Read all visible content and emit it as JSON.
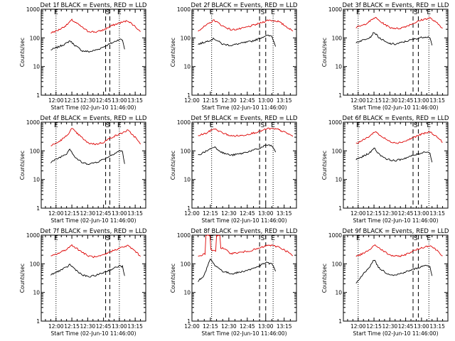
{
  "page": {
    "background": "#ffffff"
  },
  "colors": {
    "events": "#000000",
    "lld": "#dd0000",
    "axis": "#000000"
  },
  "common": {
    "ylabel": "Counts/sec",
    "xlabel": "Start Time (02-Jun-10 11:46:00)",
    "y_ticks": [
      "1",
      "10",
      "100",
      "1000"
    ],
    "x_ticks": [
      "12:00",
      "12:15",
      "12:30",
      "12:45",
      "13:00",
      "13:15"
    ],
    "marker_E": "E",
    "marker_S": "S",
    "ylim": [
      1,
      1000
    ],
    "y_scale": "log"
  },
  "chart_data": [
    {
      "type": "line",
      "title": "Det 1f BLACK = Events, RED = LLD",
      "xlabel": "Start Time (02-Jun-10 11:46:00)",
      "ylabel": "Counts/sec",
      "x_range": [
        "11:46",
        "13:25"
      ],
      "series": [
        {
          "name": "Events",
          "color": "#000000",
          "x": [
            "11:55",
            "12:02",
            "12:10",
            "12:13",
            "12:18",
            "12:25",
            "12:32",
            "12:40",
            "12:48",
            "12:55",
            "13:00",
            "13:03",
            "13:05"
          ],
          "values": [
            38,
            48,
            65,
            80,
            55,
            35,
            33,
            40,
            55,
            72,
            90,
            85,
            40
          ]
        },
        {
          "name": "LLD",
          "color": "#dd0000",
          "x": [
            "11:55",
            "12:02",
            "12:10",
            "12:15",
            "12:22",
            "12:30",
            "12:38",
            "12:45",
            "12:52",
            "13:00",
            "13:08",
            "13:15",
            "13:20"
          ],
          "values": [
            150,
            185,
            280,
            420,
            280,
            170,
            160,
            190,
            260,
            330,
            400,
            250,
            165
          ]
        }
      ],
      "markers": {
        "E_dotted": [
          "12:00",
          "13:00"
        ],
        "S_dashed": [
          "12:47",
          "12:51"
        ]
      }
    },
    {
      "type": "line",
      "title": "Det 2f BLACK = Events, RED = LLD",
      "xlabel": "Start Time (02-Jun-10 11:46:00)",
      "ylabel": "Counts/sec",
      "x_range": [
        "12:00",
        "13:25"
      ],
      "series": [
        {
          "name": "Events",
          "color": "#000000",
          "x": [
            "12:05",
            "12:12",
            "12:18",
            "12:25",
            "12:32",
            "12:40",
            "12:48",
            "12:55",
            "13:00",
            "13:05",
            "13:08"
          ],
          "values": [
            60,
            75,
            95,
            60,
            55,
            65,
            75,
            95,
            120,
            115,
            50
          ]
        },
        {
          "name": "LLD",
          "color": "#dd0000",
          "x": [
            "12:05",
            "12:12",
            "12:18",
            "12:25",
            "12:32",
            "12:40",
            "12:48",
            "12:55",
            "13:02",
            "13:10",
            "13:18",
            "13:22"
          ],
          "values": [
            180,
            280,
            420,
            260,
            190,
            210,
            260,
            320,
            420,
            380,
            230,
            170
          ]
        }
      ],
      "markers": {
        "E_dotted": [
          "12:16",
          "13:06"
        ],
        "S_dashed": [
          "12:55",
          "13:00"
        ]
      }
    },
    {
      "type": "line",
      "title": "Det 3f BLACK = Events, RED = LLD",
      "xlabel": "Start Time (02-Jun-10 11:46:00)",
      "ylabel": "Counts/sec",
      "x_range": [
        "11:46",
        "13:25"
      ],
      "series": [
        {
          "name": "Events",
          "color": "#000000",
          "x": [
            "11:58",
            "12:05",
            "12:12",
            "12:15",
            "12:20",
            "12:28",
            "12:35",
            "12:42",
            "12:50",
            "12:58",
            "13:04",
            "13:08",
            "13:10"
          ],
          "values": [
            70,
            85,
            110,
            160,
            100,
            65,
            60,
            70,
            85,
            100,
            110,
            105,
            55
          ]
        },
        {
          "name": "LLD",
          "color": "#dd0000",
          "x": [
            "11:58",
            "12:05",
            "12:12",
            "12:16",
            "12:22",
            "12:30",
            "12:38",
            "12:45",
            "12:52",
            "13:00",
            "13:08",
            "13:15",
            "13:20"
          ],
          "values": [
            230,
            280,
            400,
            520,
            350,
            230,
            210,
            250,
            320,
            420,
            500,
            320,
            220
          ]
        }
      ],
      "markers": {
        "E_dotted": [
          "12:00",
          "13:07"
        ],
        "S_dashed": [
          "12:52",
          "12:57"
        ]
      }
    },
    {
      "type": "line",
      "title": "Det 4f BLACK = Events, RED = LLD",
      "xlabel": "Start Time (02-Jun-10 11:46:00)",
      "ylabel": "Counts/sec",
      "x_range": [
        "11:46",
        "13:25"
      ],
      "series": [
        {
          "name": "Events",
          "color": "#000000",
          "x": [
            "11:55",
            "12:02",
            "12:10",
            "12:13",
            "12:18",
            "12:25",
            "12:32",
            "12:40",
            "12:48",
            "12:55",
            "13:00",
            "13:03",
            "13:05"
          ],
          "values": [
            40,
            55,
            80,
            120,
            60,
            38,
            35,
            42,
            58,
            80,
            100,
            95,
            35
          ]
        },
        {
          "name": "LLD",
          "color": "#dd0000",
          "x": [
            "11:55",
            "12:02",
            "12:10",
            "12:15",
            "12:22",
            "12:30",
            "12:38",
            "12:45",
            "12:52",
            "13:00",
            "13:08",
            "13:15",
            "13:20"
          ],
          "values": [
            150,
            200,
            330,
            600,
            350,
            190,
            170,
            200,
            290,
            380,
            520,
            300,
            170
          ]
        }
      ],
      "markers": {
        "E_dotted": [
          "12:00",
          "13:00"
        ],
        "S_dashed": [
          "12:47",
          "12:51"
        ]
      }
    },
    {
      "type": "line",
      "title": "Det 5f BLACK = Events, RED = LLD",
      "xlabel": "Start Time (02-Jun-10 11:46:00)",
      "ylabel": "Counts/sec",
      "x_range": [
        "12:00",
        "13:25"
      ],
      "series": [
        {
          "name": "Events",
          "color": "#000000",
          "x": [
            "12:05",
            "12:12",
            "12:18",
            "12:25",
            "12:32",
            "12:40",
            "12:48",
            "12:55",
            "13:00",
            "13:05",
            "13:08"
          ],
          "values": [
            70,
            100,
            140,
            85,
            70,
            80,
            100,
            120,
            160,
            150,
            90
          ]
        },
        {
          "name": "LLD",
          "color": "#dd0000",
          "x": [
            "12:05",
            "12:12",
            "12:18",
            "12:25",
            "12:32",
            "12:40",
            "12:48",
            "12:55",
            "13:02",
            "13:10",
            "13:18",
            "13:22"
          ],
          "values": [
            340,
            420,
            600,
            420,
            330,
            340,
            400,
            480,
            600,
            560,
            400,
            320
          ]
        }
      ],
      "markers": {
        "E_dotted": [
          "12:16",
          "13:06"
        ],
        "S_dashed": [
          "12:55",
          "13:00"
        ]
      }
    },
    {
      "type": "line",
      "title": "Det 6f BLACK = Events, RED = LLD",
      "xlabel": "Start Time (02-Jun-10 11:46:00)",
      "ylabel": "Counts/sec",
      "x_range": [
        "11:46",
        "13:25"
      ],
      "series": [
        {
          "name": "Events",
          "color": "#000000",
          "x": [
            "11:58",
            "12:05",
            "12:12",
            "12:15",
            "12:20",
            "12:28",
            "12:35",
            "12:42",
            "12:50",
            "12:58",
            "13:04",
            "13:08",
            "13:10"
          ],
          "values": [
            50,
            65,
            90,
            130,
            75,
            50,
            45,
            52,
            65,
            80,
            95,
            85,
            40
          ]
        },
        {
          "name": "LLD",
          "color": "#dd0000",
          "x": [
            "11:58",
            "12:05",
            "12:12",
            "12:16",
            "12:22",
            "12:30",
            "12:38",
            "12:45",
            "12:52",
            "13:00",
            "13:08",
            "13:15",
            "13:20"
          ],
          "values": [
            180,
            240,
            350,
            480,
            320,
            210,
            190,
            220,
            290,
            380,
            460,
            300,
            200
          ]
        }
      ],
      "markers": {
        "E_dotted": [
          "12:00",
          "13:07"
        ],
        "S_dashed": [
          "12:52",
          "12:57"
        ]
      }
    },
    {
      "type": "line",
      "title": "Det 7f BLACK = Events, RED = LLD",
      "xlabel": "Start Time (02-Jun-10 11:46:00)",
      "ylabel": "Counts/sec",
      "x_range": [
        "11:46",
        "13:25"
      ],
      "series": [
        {
          "name": "Events",
          "color": "#000000",
          "x": [
            "11:55",
            "12:02",
            "12:10",
            "12:13",
            "12:18",
            "12:25",
            "12:32",
            "12:40",
            "12:48",
            "12:55",
            "13:00",
            "13:03",
            "13:05"
          ],
          "values": [
            40,
            55,
            75,
            95,
            65,
            40,
            35,
            42,
            55,
            70,
            85,
            80,
            38
          ]
        },
        {
          "name": "LLD",
          "color": "#dd0000",
          "x": [
            "11:55",
            "12:02",
            "12:10",
            "12:15",
            "12:22",
            "12:30",
            "12:38",
            "12:45",
            "12:52",
            "13:00",
            "13:08",
            "13:15",
            "13:20"
          ],
          "values": [
            180,
            230,
            320,
            450,
            300,
            190,
            170,
            200,
            270,
            350,
            430,
            280,
            180
          ]
        }
      ],
      "markers": {
        "E_dotted": [
          "12:00",
          "13:00"
        ],
        "S_dashed": [
          "12:47",
          "12:51"
        ]
      }
    },
    {
      "type": "line",
      "title": "Det 8f BLACK = Events, RED = LLD",
      "xlabel": "Start Time (02-Jun-10 11:46:00)",
      "ylabel": "Counts/sec",
      "x_range": [
        "12:00",
        "13:25"
      ],
      "series": [
        {
          "name": "Events",
          "color": "#000000",
          "x": [
            "12:05",
            "12:10",
            "12:15",
            "12:18",
            "12:25",
            "12:32",
            "12:40",
            "12:48",
            "12:55",
            "13:00",
            "13:05",
            "13:08"
          ],
          "values": [
            25,
            40,
            150,
            95,
            55,
            45,
            52,
            65,
            85,
            110,
            100,
            55
          ]
        },
        {
          "name": "LLD",
          "color": "#dd0000",
          "x": [
            "12:05",
            "12:10",
            "12:12",
            "12:14",
            "12:16",
            "12:18",
            "12:22",
            "12:25",
            "12:32",
            "12:40",
            "12:48",
            "12:55",
            "13:02",
            "13:10",
            "13:18",
            "13:22"
          ],
          "values": [
            180,
            220,
            1000,
            1000,
            300,
            280,
            1000,
            350,
            230,
            250,
            290,
            350,
            450,
            400,
            260,
            190
          ]
        }
      ],
      "markers": {
        "E_dotted": [
          "12:16",
          "13:06"
        ],
        "S_dashed": [
          "12:55",
          "13:00"
        ]
      }
    },
    {
      "type": "line",
      "title": "Det 9f BLACK = Events, RED = LLD",
      "xlabel": "Start Time (02-Jun-10 11:46:00)",
      "ylabel": "Counts/sec",
      "x_range": [
        "11:46",
        "13:25"
      ],
      "series": [
        {
          "name": "Events",
          "color": "#000000",
          "x": [
            "11:58",
            "12:05",
            "12:12",
            "12:15",
            "12:20",
            "12:28",
            "12:35",
            "12:42",
            "12:50",
            "12:58",
            "13:04",
            "13:08",
            "13:10"
          ],
          "values": [
            20,
            45,
            90,
            140,
            70,
            45,
            40,
            48,
            60,
            75,
            90,
            80,
            38
          ]
        },
        {
          "name": "LLD",
          "color": "#dd0000",
          "x": [
            "11:58",
            "12:05",
            "12:12",
            "12:16",
            "12:22",
            "12:30",
            "12:38",
            "12:45",
            "12:52",
            "13:00",
            "13:08",
            "13:15",
            "13:20"
          ],
          "values": [
            180,
            230,
            330,
            460,
            310,
            200,
            180,
            210,
            280,
            360,
            440,
            290,
            190
          ]
        }
      ],
      "markers": {
        "E_dotted": [
          "12:00",
          "13:07"
        ],
        "S_dashed": [
          "12:52",
          "12:57"
        ]
      }
    }
  ]
}
